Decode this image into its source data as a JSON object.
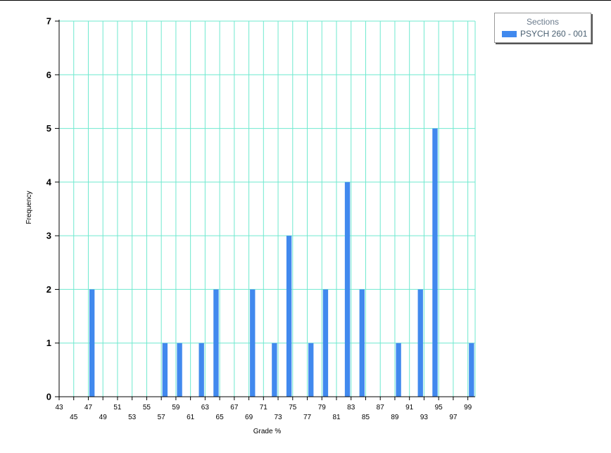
{
  "chart_data": {
    "type": "bar",
    "xlabel": "Grade %",
    "ylabel": "Frequency",
    "ylim": [
      0,
      7
    ],
    "yticks": [
      "0",
      "1",
      "2",
      "3",
      "4",
      "5",
      "6",
      "7"
    ],
    "xlim": [
      43,
      100
    ],
    "xticks_upper": [
      "43",
      "47",
      "51",
      "55",
      "59",
      "63",
      "67",
      "71",
      "75",
      "79",
      "83",
      "87",
      "91",
      "95",
      "99"
    ],
    "xticks_lower": [
      "45",
      "49",
      "53",
      "57",
      "61",
      "65",
      "69",
      "73",
      "77",
      "81",
      "85",
      "89",
      "93",
      "97"
    ],
    "grid": true,
    "legend_title": "Sections",
    "legend_position": "top-right",
    "series": [
      {
        "name": "PSYCH 260 - 001",
        "color": "#4189ee",
        "points": [
          {
            "x": 47.5,
            "y": 2
          },
          {
            "x": 57.5,
            "y": 1
          },
          {
            "x": 59.5,
            "y": 1
          },
          {
            "x": 62.5,
            "y": 1
          },
          {
            "x": 64.5,
            "y": 2
          },
          {
            "x": 69.5,
            "y": 2
          },
          {
            "x": 72.5,
            "y": 1
          },
          {
            "x": 74.5,
            "y": 3
          },
          {
            "x": 77.5,
            "y": 1
          },
          {
            "x": 79.5,
            "y": 2
          },
          {
            "x": 82.5,
            "y": 4
          },
          {
            "x": 84.5,
            "y": 2
          },
          {
            "x": 89.5,
            "y": 1
          },
          {
            "x": 92.5,
            "y": 2
          },
          {
            "x": 94.5,
            "y": 5
          },
          {
            "x": 99.5,
            "y": 1
          }
        ]
      }
    ]
  }
}
